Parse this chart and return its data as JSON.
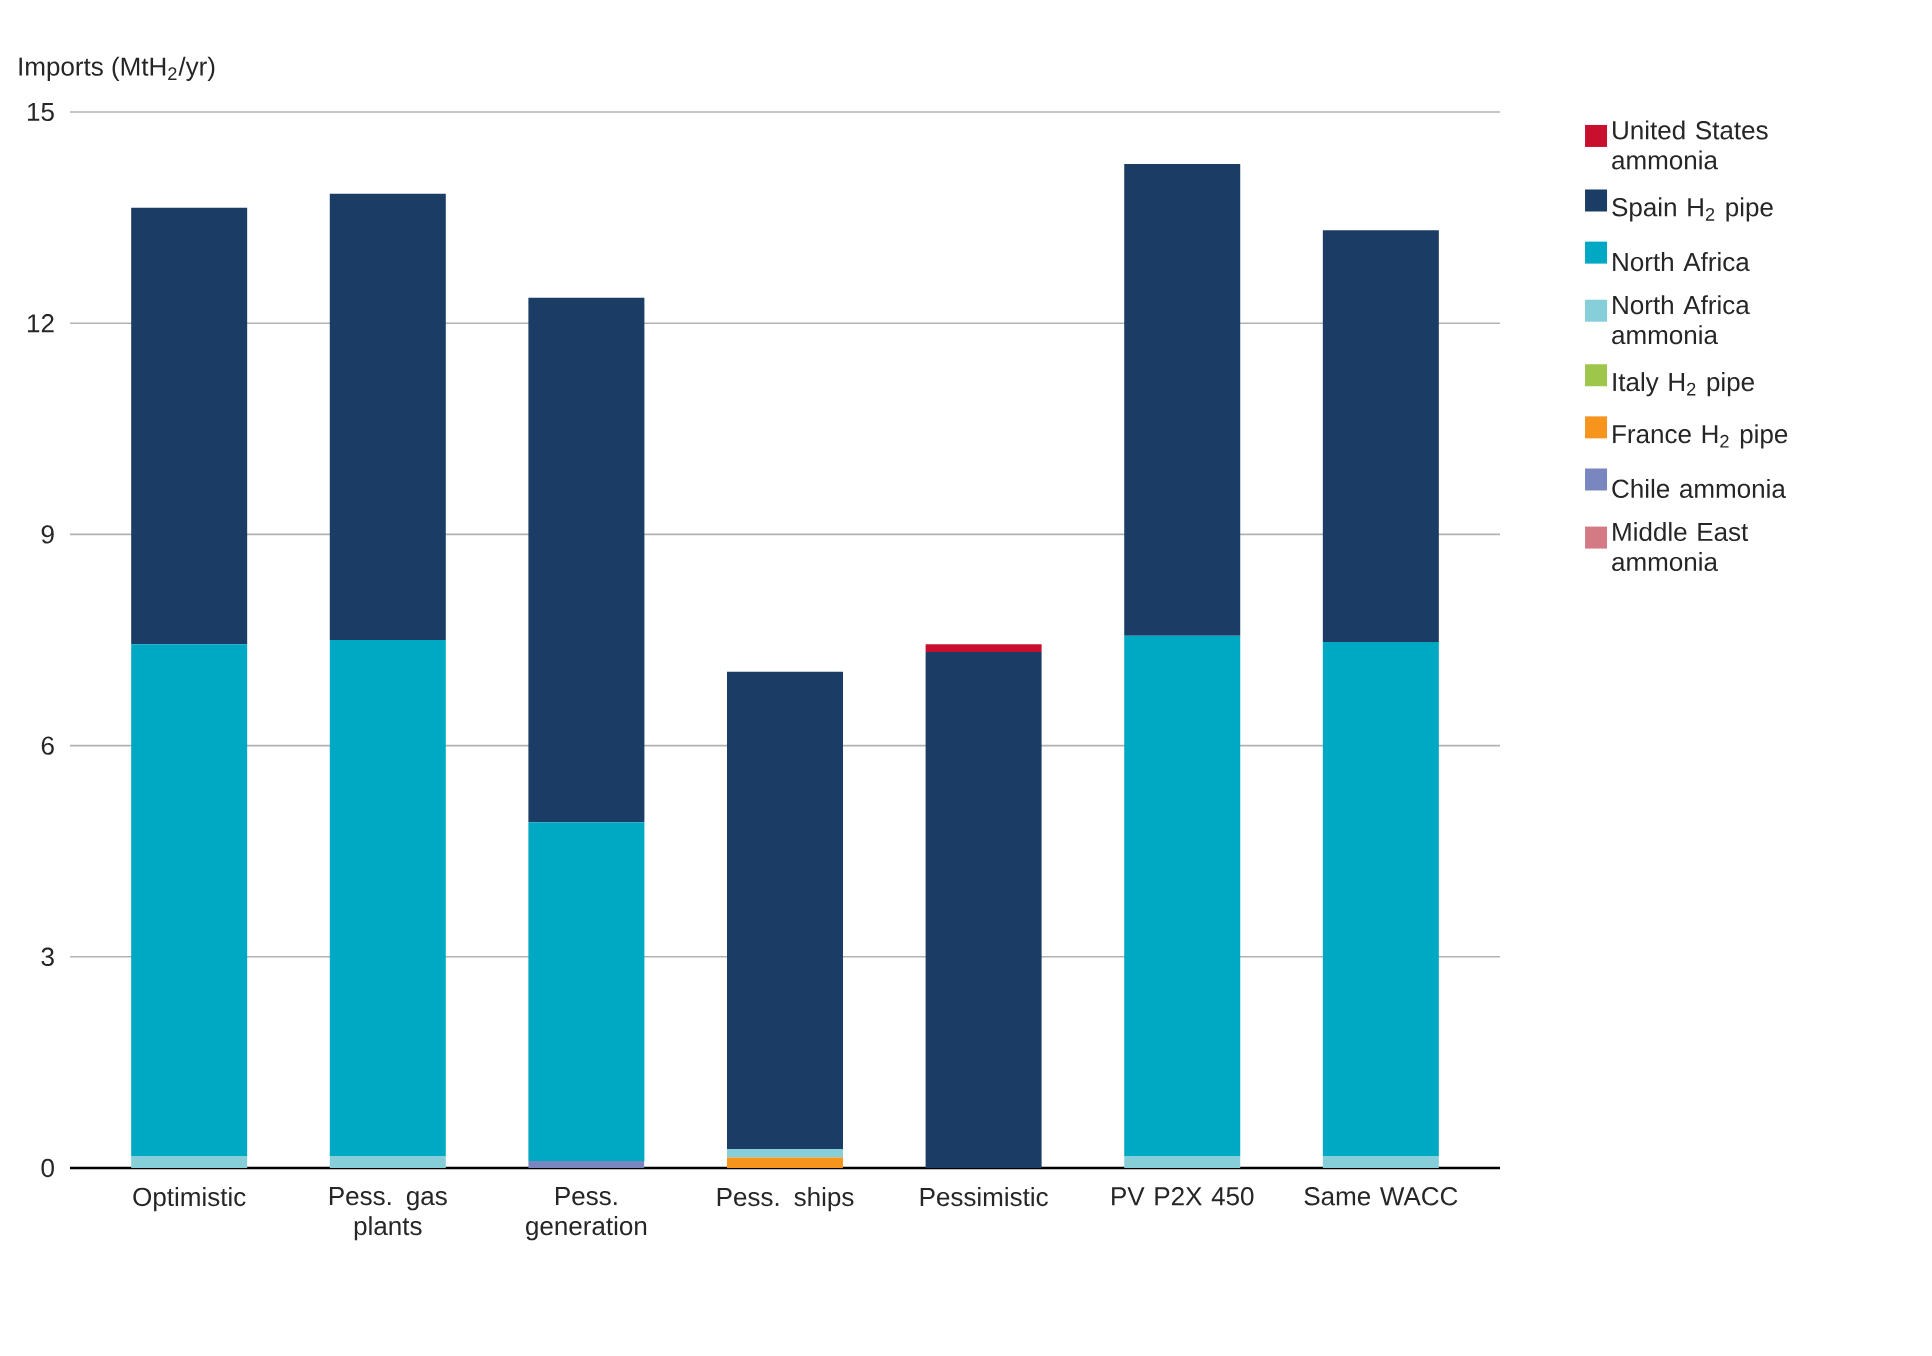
{
  "chart_data": {
    "type": "bar",
    "stacked": true,
    "ylabel": "Imports (MtH$_{2}$/yr)",
    "categories": [
      "Optimistic",
      "Pess. gas plants",
      "Pess. generation",
      "Pess. ships",
      "Pessimistic",
      "PV P2X 450",
      "Same WACC"
    ],
    "series": [
      {
        "name": "Middle East ammonia",
        "color": "#d47a85",
        "values": [
          0,
          0,
          0,
          0,
          0,
          0,
          0
        ]
      },
      {
        "name": "Chile ammonia",
        "color": "#7a86bf",
        "values": [
          0,
          0,
          0.1,
          0,
          0,
          0,
          0
        ]
      },
      {
        "name": "France H$_{2}$ pipe",
        "color": "#f7941d",
        "values": [
          0,
          0,
          0,
          0.15,
          0,
          0,
          0
        ]
      },
      {
        "name": "Italy H$_{2}$ pipe",
        "color": "#9dc64a",
        "values": [
          0,
          0,
          0,
          0,
          0,
          0,
          0
        ]
      },
      {
        "name": "North Africa ammonia",
        "color": "#86cfd9",
        "values": [
          0.17,
          0.17,
          0,
          0.12,
          0,
          0.17,
          0.17
        ]
      },
      {
        "name": "North Africa",
        "color": "#00a9c3",
        "values": [
          7.27,
          7.33,
          4.81,
          0,
          0,
          7.39,
          7.3
        ]
      },
      {
        "name": "Spain H$_{2}$ pipe",
        "color": "#1b3c65",
        "values": [
          6.2,
          6.34,
          7.45,
          6.78,
          7.33,
          6.7,
          5.85
        ]
      },
      {
        "name": "United States ammonia",
        "color": "#c8102e",
        "values": [
          0,
          0,
          0,
          0,
          0.11,
          0,
          0
        ]
      }
    ],
    "ylim": [
      0,
      15
    ],
    "yticks": [
      0,
      3,
      6,
      9,
      12,
      15
    ],
    "grid": "y",
    "legend": "right"
  }
}
